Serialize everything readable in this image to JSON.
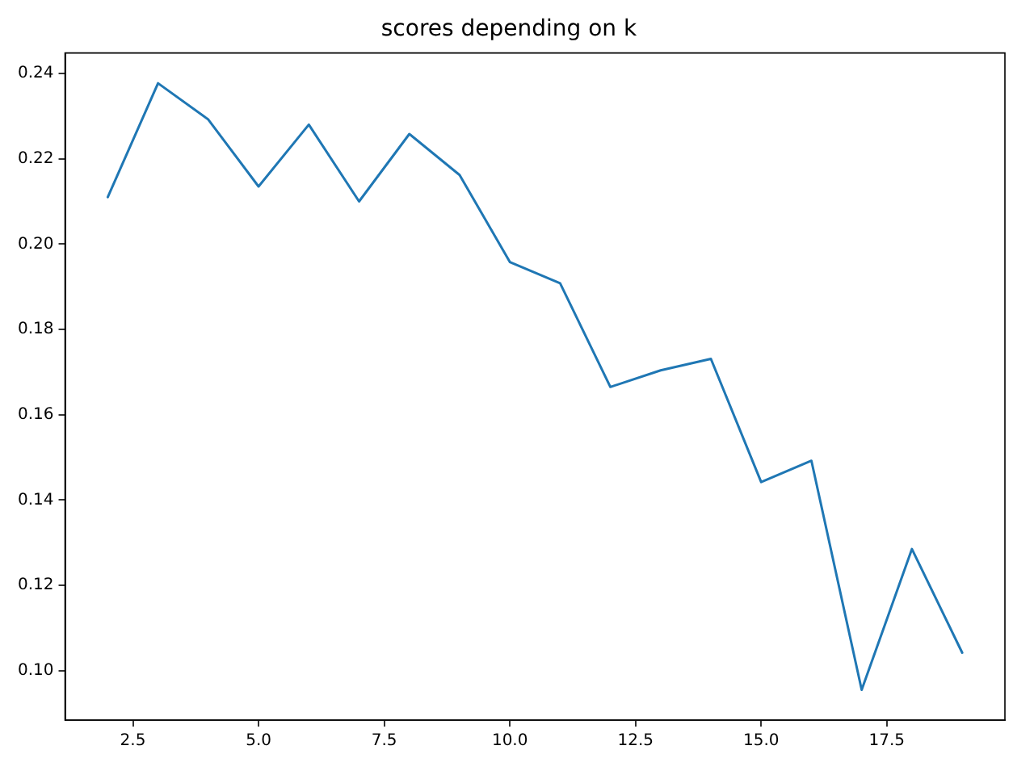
{
  "chart_data": {
    "type": "line",
    "title": "scores depending on k",
    "x": [
      2,
      3,
      4,
      5,
      6,
      7,
      8,
      9,
      10,
      11,
      12,
      13,
      14,
      15,
      16,
      17,
      18,
      19
    ],
    "series": [
      {
        "color": "#1f77b4",
        "values": [
          0.211,
          0.2377,
          0.2292,
          0.2135,
          0.228,
          0.21,
          0.2258,
          0.2162,
          0.1958,
          0.1908,
          0.1665,
          0.1704,
          0.1731,
          0.1442,
          0.1492,
          0.0955,
          0.1285,
          0.1042
        ]
      }
    ],
    "xlim": [
      1.15,
      19.85
    ],
    "xticks": [
      {
        "value": 2.5,
        "label": "2.5"
      },
      {
        "value": 5,
        "label": "5.0"
      },
      {
        "value": 7.5,
        "label": "7.5"
      },
      {
        "value": 10,
        "label": "10.0"
      },
      {
        "value": 12.5,
        "label": "12.5"
      },
      {
        "value": 15,
        "label": "15.0"
      },
      {
        "value": 17.5,
        "label": "17.5"
      }
    ],
    "ylim": [
      0.0884,
      0.2448
    ],
    "yticks": [
      {
        "value": 0.1,
        "label": "0.10"
      },
      {
        "value": 0.12,
        "label": "0.12"
      },
      {
        "value": 0.14,
        "label": "0.14"
      },
      {
        "value": 0.16,
        "label": "0.16"
      },
      {
        "value": 0.18,
        "label": "0.18"
      },
      {
        "value": 0.2,
        "label": "0.20"
      },
      {
        "value": 0.22,
        "label": "0.22"
      },
      {
        "value": 0.24,
        "label": "0.24"
      }
    ],
    "marker": "none",
    "line_style": "solid"
  }
}
